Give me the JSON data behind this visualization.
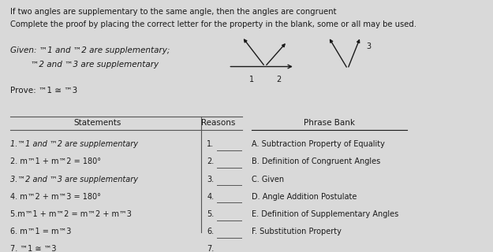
{
  "bg_color": "#d9d9d9",
  "title_line1": "If two angles are supplementary to the same angle, then the angles are congruent",
  "title_line2": "Complete the proof by placing the correct letter for the property in the blank, some or all may be used.",
  "given_line1": "Given: ™1 and ™2 are supplementary;",
  "given_line2": "        ™2 and ™3 are supplementary",
  "prove": "Prove: ™1 ≅ ™3",
  "statements_header": "Statements",
  "reasons_header": "Reasons",
  "phrasebank_header": "Phrase Bank",
  "statements": [
    "1.™1 and ™2 are supplementary",
    "2. m™1 + m™2 = 180°",
    "3.™2 and ™3 are supplementary",
    "4. m™2 + m™3 = 180°",
    "5.m™1 + m™2 = m™2 + m™3",
    "6. m™1 = m™3",
    "7. ™1 ≅ ™3"
  ],
  "reasons": [
    "1.",
    "2.",
    "3.",
    "4.",
    "5.",
    "6.",
    "7."
  ],
  "phrase_bank": [
    "A. Subtraction Property of Equality",
    "B. Definition of Congruent Angles",
    "C. Given",
    "D. Angle Addition Postulate",
    "E. Definition of Supplementary Angles",
    "F. Substitution Property"
  ],
  "text_color": "#1a1a1a",
  "line_color": "#555555",
  "italic_statements": [
    true,
    false,
    true,
    false,
    false,
    false,
    false
  ]
}
